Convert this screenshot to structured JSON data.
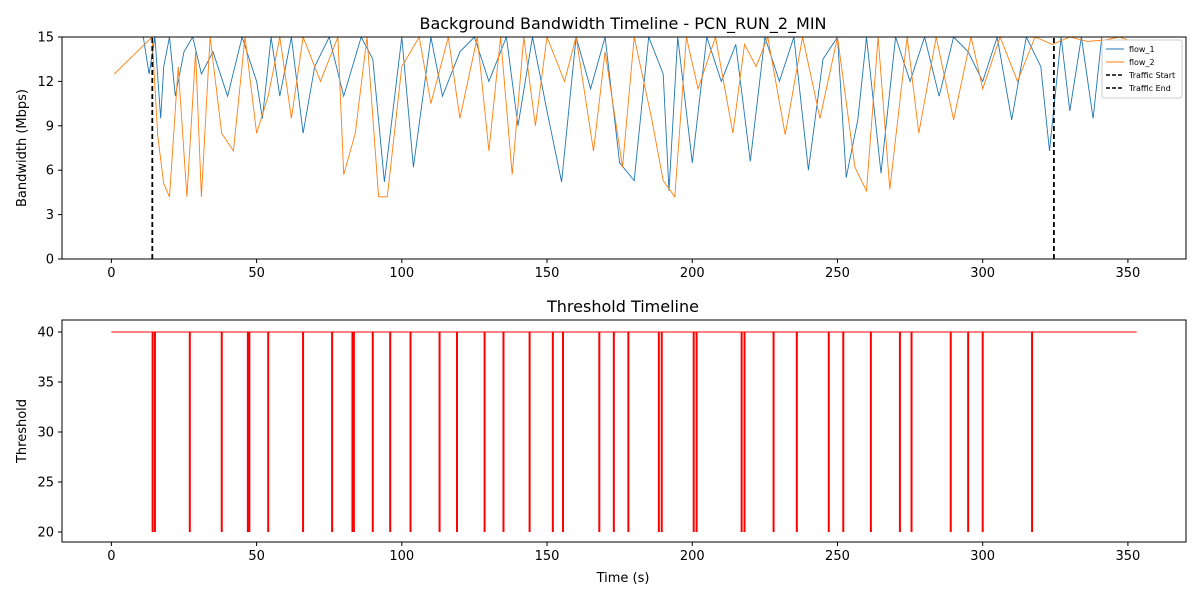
{
  "colors": {
    "flow_1": "#1f77b4",
    "flow_2": "#ff7f0e",
    "marker": "#000000",
    "threshold": "#ff0000"
  },
  "chart_data": [
    {
      "type": "line",
      "title": "Background Bandwidth Timeline - PCN_RUN_2_MIN",
      "xlabel": "",
      "ylabel": "Bandwidth (Mbps)",
      "xlim": [
        -17,
        370
      ],
      "ylim": [
        0,
        15
      ],
      "xticks": [
        0,
        50,
        100,
        150,
        200,
        250,
        300,
        350
      ],
      "yticks": [
        0,
        3,
        6,
        9,
        12,
        15
      ],
      "grid": false,
      "legend": "top-right",
      "series": [
        {
          "name": "flow_1",
          "x": [
            11,
            13,
            15,
            17,
            18,
            20,
            22,
            25,
            28,
            31,
            35,
            40,
            45,
            50,
            52,
            55,
            58,
            62,
            66,
            70,
            75,
            80,
            86,
            90,
            94,
            100,
            104,
            110,
            114,
            120,
            125,
            130,
            136,
            140,
            145,
            150,
            155,
            160,
            165,
            170,
            175,
            180,
            185,
            190,
            192,
            195,
            200,
            205,
            210,
            215,
            220,
            225,
            230,
            235,
            240,
            245,
            250,
            253,
            257,
            260,
            265,
            270,
            275,
            280,
            285,
            290,
            295,
            300,
            305,
            310,
            315,
            320,
            323,
            327,
            330,
            334,
            338,
            341
          ],
          "values": [
            15,
            12.5,
            15,
            9.5,
            13,
            15,
            11,
            14,
            15,
            12.5,
            14,
            11,
            15,
            12,
            9.5,
            15,
            11,
            15,
            8.5,
            13,
            15,
            11,
            15,
            13.5,
            5.2,
            15,
            6.2,
            15,
            11,
            14,
            15,
            12,
            15,
            9,
            15,
            10,
            5.2,
            15,
            11.5,
            15,
            6.5,
            5.3,
            15,
            12.5,
            4.6,
            15,
            6.5,
            15,
            12,
            14.5,
            6.6,
            15,
            12,
            15,
            6,
            13.5,
            15,
            5.5,
            9.4,
            15,
            5.8,
            15,
            12,
            15,
            11,
            15,
            14,
            12,
            15,
            9.4,
            15,
            13,
            7.3,
            15,
            10,
            15,
            9.5,
            15
          ]
        },
        {
          "name": "flow_2",
          "x": [
            1,
            14,
            16,
            18,
            20,
            23,
            26,
            29,
            31,
            34,
            38,
            42,
            46,
            50,
            54,
            58,
            62,
            66,
            72,
            78,
            80,
            84,
            88,
            92,
            95,
            100,
            106,
            110,
            116,
            120,
            126,
            130,
            134,
            138,
            142,
            146,
            150,
            156,
            160,
            166,
            170,
            176,
            180,
            186,
            190,
            194,
            198,
            202,
            208,
            214,
            218,
            222,
            226,
            232,
            238,
            244,
            250,
            256,
            260,
            264,
            268,
            274,
            278,
            284,
            290,
            296,
            300,
            306,
            312,
            318,
            324,
            330,
            336,
            342,
            347,
            350
          ],
          "values": [
            12.5,
            15,
            8.3,
            5.1,
            4.2,
            13,
            4.2,
            14,
            4.2,
            15,
            8.5,
            7.3,
            15,
            8.5,
            11,
            15,
            9.5,
            15,
            12,
            15,
            5.7,
            8.5,
            15,
            4.2,
            4.2,
            13,
            15,
            10.5,
            15,
            9.5,
            15,
            7.3,
            15,
            5.7,
            15,
            9,
            15,
            12,
            15,
            7.3,
            14,
            6.2,
            15,
            9.5,
            5.3,
            4.2,
            15,
            11.5,
            15,
            8.5,
            14.5,
            13,
            15,
            8.4,
            15,
            9.5,
            15,
            6.2,
            4.6,
            15,
            4.7,
            15,
            8.5,
            15,
            9.4,
            15,
            11.5,
            15,
            12,
            15,
            14.5,
            15,
            14.7,
            14.8,
            15,
            14.8
          ]
        },
        {
          "name": "Traffic Start",
          "x": [
            14.1,
            14.1
          ],
          "values": [
            0,
            15
          ]
        },
        {
          "name": "Traffic End",
          "x": [
            324.5,
            324.5
          ],
          "values": [
            0,
            15
          ]
        }
      ]
    },
    {
      "type": "line",
      "title": "Threshold Timeline",
      "xlabel": "Time (s)",
      "ylabel": "Threshold",
      "xlim": [
        -17,
        370
      ],
      "ylim": [
        19,
        41.2
      ],
      "xticks": [
        0,
        50,
        100,
        150,
        200,
        250,
        300,
        350
      ],
      "yticks": [
        20,
        25,
        30,
        35,
        40
      ],
      "grid": false,
      "baseline": 40,
      "xrange": [
        0,
        353
      ],
      "drops_to": 20,
      "drops_at": [
        14.2,
        15,
        27,
        38,
        47,
        47.5,
        54,
        66,
        76,
        83,
        83.5,
        90,
        96,
        103,
        113,
        119,
        128.5,
        135,
        144,
        152,
        155.5,
        168,
        173,
        178,
        188.5,
        189.5,
        200.5,
        201.5,
        217,
        218,
        228,
        236,
        247,
        252,
        261.5,
        271.5,
        275.5,
        289,
        295,
        300,
        317
      ]
    }
  ]
}
